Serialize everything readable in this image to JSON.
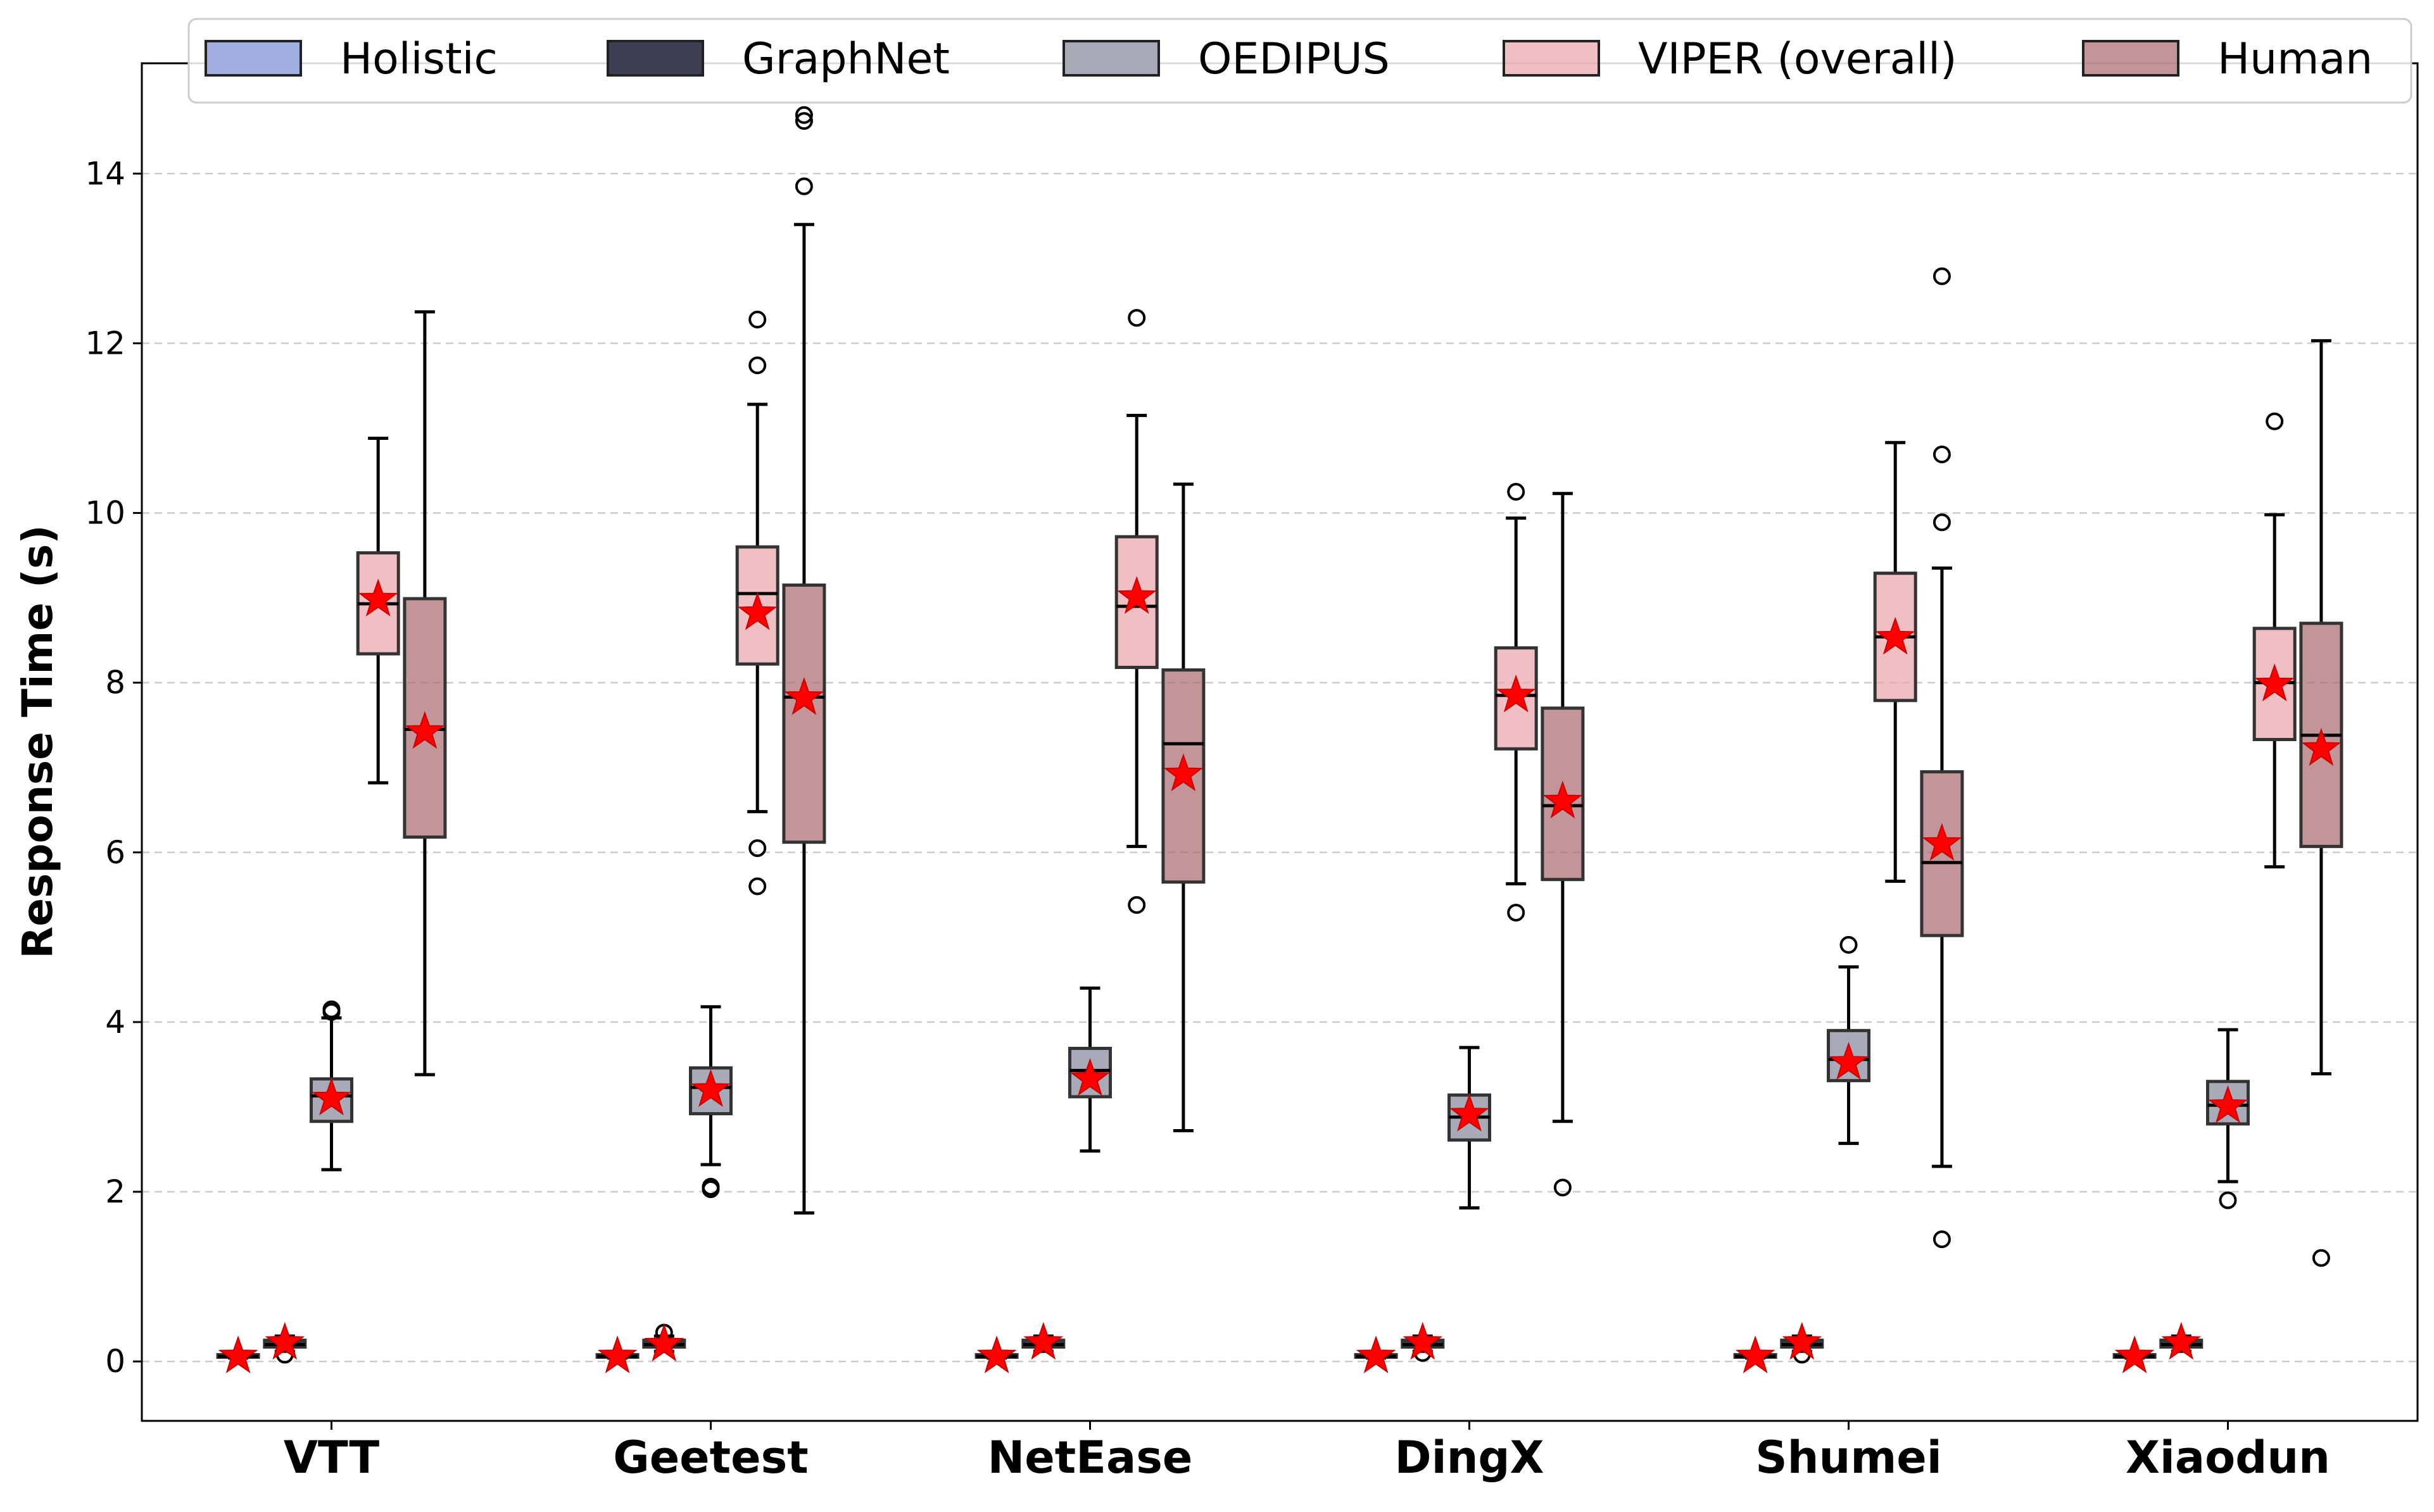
{
  "chart_data": {
    "type": "boxplot",
    "title": "",
    "xlabel": "",
    "ylabel": "Response Time (s)",
    "ylim": [
      -0.7,
      15.3
    ],
    "yticks": [
      0,
      2,
      4,
      6,
      8,
      10,
      12,
      14
    ],
    "grid": "y-dashed",
    "legend_position": "top",
    "mean_marker": "red-star",
    "categories": [
      "VTT",
      "Geetest",
      "NetEase",
      "DingX",
      "Shumei",
      "Xiaodun"
    ],
    "series": [
      {
        "name": "Holistic",
        "color": "#a3aee0",
        "alpha": 1.0,
        "boxes": [
          {
            "whislo": 0.04,
            "q1": 0.05,
            "med": 0.06,
            "q3": 0.08,
            "whishi": 0.09,
            "mean": 0.06,
            "fliers": []
          },
          {
            "whislo": 0.04,
            "q1": 0.05,
            "med": 0.06,
            "q3": 0.08,
            "whishi": 0.09,
            "mean": 0.06,
            "fliers": []
          },
          {
            "whislo": 0.04,
            "q1": 0.05,
            "med": 0.06,
            "q3": 0.08,
            "whishi": 0.09,
            "mean": 0.06,
            "fliers": []
          },
          {
            "whislo": 0.04,
            "q1": 0.05,
            "med": 0.06,
            "q3": 0.08,
            "whishi": 0.09,
            "mean": 0.06,
            "fliers": []
          },
          {
            "whislo": 0.04,
            "q1": 0.05,
            "med": 0.06,
            "q3": 0.08,
            "whishi": 0.09,
            "mean": 0.06,
            "fliers": []
          },
          {
            "whislo": 0.04,
            "q1": 0.05,
            "med": 0.06,
            "q3": 0.08,
            "whishi": 0.09,
            "mean": 0.06,
            "fliers": []
          }
        ]
      },
      {
        "name": "GraphNet",
        "color": "#3e3f52",
        "alpha": 1.0,
        "boxes": [
          {
            "whislo": 0.12,
            "q1": 0.17,
            "med": 0.2,
            "q3": 0.25,
            "whishi": 0.3,
            "mean": 0.22,
            "fliers": [
              0.08
            ]
          },
          {
            "whislo": 0.12,
            "q1": 0.17,
            "med": 0.2,
            "q3": 0.25,
            "whishi": 0.3,
            "mean": 0.2,
            "fliers": [
              0.34
            ]
          },
          {
            "whislo": 0.12,
            "q1": 0.17,
            "med": 0.2,
            "q3": 0.25,
            "whishi": 0.3,
            "mean": 0.22,
            "fliers": []
          },
          {
            "whislo": 0.12,
            "q1": 0.17,
            "med": 0.2,
            "q3": 0.25,
            "whishi": 0.3,
            "mean": 0.22,
            "fliers": [
              0.1
            ]
          },
          {
            "whislo": 0.12,
            "q1": 0.17,
            "med": 0.2,
            "q3": 0.25,
            "whishi": 0.3,
            "mean": 0.22,
            "fliers": [
              0.08
            ]
          },
          {
            "whislo": 0.12,
            "q1": 0.17,
            "med": 0.2,
            "q3": 0.25,
            "whishi": 0.3,
            "mean": 0.22,
            "fliers": []
          }
        ]
      },
      {
        "name": "OEDIPUS",
        "color": "#a8aab8",
        "alpha": 1.0,
        "boxes": [
          {
            "whislo": 2.26,
            "q1": 2.83,
            "med": 3.13,
            "q3": 3.33,
            "whishi": 4.05,
            "mean": 3.1,
            "fliers": [
              4.12,
              4.15
            ]
          },
          {
            "whislo": 2.32,
            "q1": 2.92,
            "med": 3.23,
            "q3": 3.46,
            "whishi": 4.18,
            "mean": 3.2,
            "fliers": [
              2.03,
              2.06
            ]
          },
          {
            "whislo": 2.48,
            "q1": 3.12,
            "med": 3.43,
            "q3": 3.69,
            "whishi": 4.4,
            "mean": 3.33,
            "fliers": []
          },
          {
            "whislo": 1.81,
            "q1": 2.61,
            "med": 2.88,
            "q3": 3.14,
            "whishi": 3.7,
            "mean": 2.91,
            "fliers": []
          },
          {
            "whislo": 2.57,
            "q1": 3.31,
            "med": 3.56,
            "q3": 3.9,
            "whishi": 4.65,
            "mean": 3.52,
            "fliers": [
              4.91
            ]
          },
          {
            "whislo": 2.12,
            "q1": 2.8,
            "med": 3.02,
            "q3": 3.3,
            "whishi": 3.91,
            "mean": 3.01,
            "fliers": [
              1.9
            ]
          }
        ]
      },
      {
        "name": "VIPER (overall)",
        "color": "#e8a4aa",
        "alpha": 0.7,
        "boxes": [
          {
            "whislo": 6.82,
            "q1": 8.34,
            "med": 8.93,
            "q3": 9.53,
            "whishi": 10.88,
            "mean": 8.98,
            "fliers": []
          },
          {
            "whislo": 6.48,
            "q1": 8.22,
            "med": 9.05,
            "q3": 9.6,
            "whishi": 11.28,
            "mean": 8.82,
            "fliers": [
              12.28,
              11.74,
              6.05,
              5.6
            ]
          },
          {
            "whislo": 6.07,
            "q1": 8.18,
            "med": 8.9,
            "q3": 9.72,
            "whishi": 11.15,
            "mean": 9.01,
            "fliers": [
              12.3,
              5.38
            ]
          },
          {
            "whislo": 5.63,
            "q1": 7.22,
            "med": 7.85,
            "q3": 8.41,
            "whishi": 9.94,
            "mean": 7.85,
            "fliers": [
              10.25,
              5.29
            ]
          },
          {
            "whislo": 5.66,
            "q1": 7.79,
            "med": 8.54,
            "q3": 9.29,
            "whishi": 10.83,
            "mean": 8.53,
            "fliers": []
          },
          {
            "whislo": 5.83,
            "q1": 7.33,
            "med": 8.0,
            "q3": 8.64,
            "whishi": 9.98,
            "mean": 7.98,
            "fliers": [
              11.08
            ]
          }
        ]
      },
      {
        "name": "Human",
        "color": "#a9686e",
        "alpha": 0.7,
        "boxes": [
          {
            "whislo": 3.38,
            "q1": 6.18,
            "med": 7.45,
            "q3": 8.99,
            "whishi": 12.37,
            "mean": 7.42,
            "fliers": []
          },
          {
            "whislo": 1.75,
            "q1": 6.12,
            "med": 7.83,
            "q3": 9.15,
            "whishi": 13.4,
            "mean": 7.82,
            "fliers": [
              13.85,
              14.62,
              14.69
            ]
          },
          {
            "whislo": 2.72,
            "q1": 5.65,
            "med": 7.28,
            "q3": 8.15,
            "whishi": 10.34,
            "mean": 6.92,
            "fliers": []
          },
          {
            "whislo": 2.83,
            "q1": 5.68,
            "med": 6.55,
            "q3": 7.7,
            "whishi": 10.23,
            "mean": 6.6,
            "fliers": [
              2.05
            ]
          },
          {
            "whislo": 2.3,
            "q1": 5.02,
            "med": 5.88,
            "q3": 6.95,
            "whishi": 9.35,
            "mean": 6.1,
            "fliers": [
              12.79,
              10.69,
              9.89,
              1.44
            ]
          },
          {
            "whislo": 3.39,
            "q1": 6.07,
            "med": 7.38,
            "q3": 8.7,
            "whishi": 12.03,
            "mean": 7.22,
            "fliers": [
              1.22
            ]
          }
        ]
      }
    ]
  }
}
